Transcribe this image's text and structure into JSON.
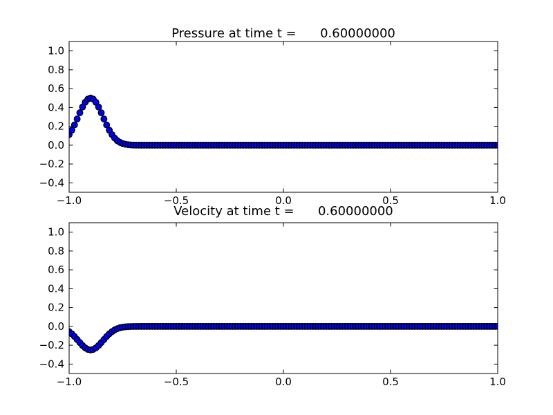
{
  "figure": {
    "background": "#ffffff",
    "frame_color": "#000000",
    "text_color": "#000000"
  },
  "chart_data": [
    {
      "type": "line",
      "title": "Pressure at time t =      0.60000000",
      "time_value": "0.60000000",
      "xlabel": "",
      "ylabel": "",
      "xlim": [
        -1.0,
        1.0
      ],
      "ylim": [
        -0.5,
        1.1
      ],
      "grid": false,
      "legend": null,
      "tick_direction": "in",
      "xtick_values": [
        -1.0,
        -0.5,
        0.0,
        0.5,
        1.0
      ],
      "xtick_labels": [
        "−1.0",
        "−0.5",
        "0.0",
        "0.5",
        "1.0"
      ],
      "ytick_values": [
        1.0,
        0.8,
        0.6,
        0.4,
        0.2,
        0.0,
        -0.2,
        -0.4
      ],
      "ytick_labels": [
        "1.0",
        "0.8",
        "0.6",
        "0.4",
        "0.2",
        "0.0",
        "−0.2",
        "−0.4"
      ],
      "series": [
        {
          "name": "pressure",
          "marker": "circle",
          "marker_fill": "#0000ff",
          "marker_edge": "#000000",
          "peak": {
            "x": -0.9,
            "y": 0.5
          },
          "pulse_shape": {
            "type": "gaussian",
            "center": -0.9,
            "amplitude": 0.5,
            "beta": 150
          },
          "pulse_samples": [
            [
              -1.0,
              0.1116
            ],
            [
              -0.9875,
              0.1586
            ],
            [
              -0.975,
              0.2151
            ],
            [
              -0.9625,
              0.2783
            ],
            [
              -0.95,
              0.3436
            ],
            [
              -0.9375,
              0.4049
            ],
            [
              -0.925,
              0.4553
            ],
            [
              -0.9125,
              0.4884
            ],
            [
              -0.9,
              0.5
            ],
            [
              -0.8875,
              0.4884
            ],
            [
              -0.875,
              0.4553
            ],
            [
              -0.8625,
              0.4049
            ],
            [
              -0.85,
              0.3436
            ],
            [
              -0.8375,
              0.2783
            ],
            [
              -0.825,
              0.2151
            ],
            [
              -0.8125,
              0.1586
            ],
            [
              -0.8,
              0.1116
            ],
            [
              -0.7875,
              0.0749
            ],
            [
              -0.775,
              0.048
            ],
            [
              -0.7625,
              0.0294
            ],
            [
              -0.75,
              0.0171
            ],
            [
              -0.7375,
              0.0095
            ],
            [
              -0.725,
              0.0051
            ],
            [
              -0.7125,
              0.0026
            ],
            [
              -0.7,
              0.0012
            ],
            [
              -0.6875,
              0.0006
            ],
            [
              -0.675,
              0.0003
            ]
          ],
          "flat_region": {
            "x_from": -0.6625,
            "x_to": 1.0,
            "x_step": 0.0125,
            "y": 0.0
          }
        }
      ]
    },
    {
      "type": "line",
      "title": "Velocity at time t =      0.60000000",
      "time_value": "0.60000000",
      "xlabel": "",
      "ylabel": "",
      "xlim": [
        -1.0,
        1.0
      ],
      "ylim": [
        -0.5,
        1.1
      ],
      "grid": false,
      "legend": null,
      "tick_direction": "in",
      "xtick_values": [
        -1.0,
        -0.5,
        0.0,
        0.5,
        1.0
      ],
      "xtick_labels": [
        "−1.0",
        "−0.5",
        "0.0",
        "0.5",
        "1.0"
      ],
      "ytick_values": [
        1.0,
        0.8,
        0.6,
        0.4,
        0.2,
        0.0,
        -0.2,
        -0.4
      ],
      "ytick_labels": [
        "1.0",
        "0.8",
        "0.6",
        "0.4",
        "0.2",
        "0.0",
        "−0.2",
        "−0.4"
      ],
      "series": [
        {
          "name": "velocity",
          "marker": "circle",
          "marker_fill": "#0000ff",
          "marker_edge": "#000000",
          "peak": {
            "x": -0.9,
            "y": -0.25
          },
          "pulse_shape": {
            "type": "gaussian",
            "center": -0.9,
            "amplitude": -0.25,
            "beta": 150
          },
          "pulse_samples": [
            [
              -1.0,
              -0.0558
            ],
            [
              -0.9875,
              -0.0793
            ],
            [
              -0.975,
              -0.1075
            ],
            [
              -0.9625,
              -0.1392
            ],
            [
              -0.95,
              -0.1718
            ],
            [
              -0.9375,
              -0.2025
            ],
            [
              -0.925,
              -0.2276
            ],
            [
              -0.9125,
              -0.2442
            ],
            [
              -0.9,
              -0.25
            ],
            [
              -0.8875,
              -0.2442
            ],
            [
              -0.875,
              -0.2276
            ],
            [
              -0.8625,
              -0.2025
            ],
            [
              -0.85,
              -0.1718
            ],
            [
              -0.8375,
              -0.1392
            ],
            [
              -0.825,
              -0.1075
            ],
            [
              -0.8125,
              -0.0793
            ],
            [
              -0.8,
              -0.0558
            ],
            [
              -0.7875,
              -0.0374
            ],
            [
              -0.775,
              -0.024
            ],
            [
              -0.7625,
              -0.0147
            ],
            [
              -0.75,
              -0.0086
            ],
            [
              -0.7375,
              -0.0048
            ],
            [
              -0.725,
              -0.0025
            ],
            [
              -0.7125,
              -0.0013
            ],
            [
              -0.7,
              -0.0006
            ],
            [
              -0.6875,
              -0.0003
            ],
            [
              -0.675,
              -0.0001
            ]
          ],
          "flat_region": {
            "x_from": -0.6625,
            "x_to": 1.0,
            "x_step": 0.0125,
            "y": 0.0
          }
        }
      ]
    }
  ]
}
